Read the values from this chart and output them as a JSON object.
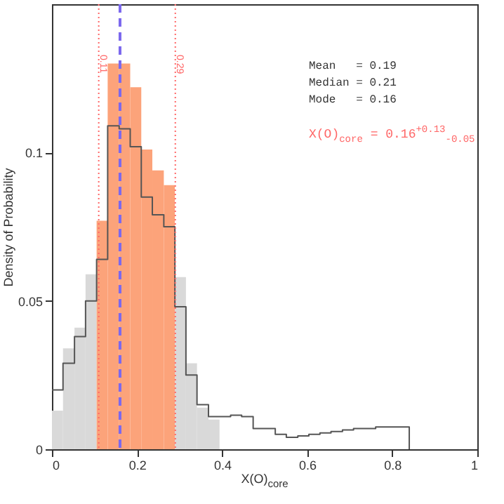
{
  "chart_data": {
    "type": "histogram",
    "xlabel": "X(O)$_{core}$",
    "ylabel": "Density of Probability",
    "bins": [
      0,
      0.026,
      0.053,
      0.079,
      0.105,
      0.131,
      0.158,
      0.184,
      0.21,
      0.236,
      0.263,
      0.289,
      0.315,
      0.341,
      0.368,
      0.394
    ],
    "series": [
      {
        "color": "#d9d9d9",
        "values": [
          0.013,
          0.034,
          0.041,
          0.059,
          null,
          null,
          null,
          null,
          null,
          null,
          null,
          0.058,
          0.029,
          0.014,
          0.01
        ]
      },
      {
        "color": "#fca37a",
        "values": [
          null,
          null,
          null,
          null,
          0.077,
          0.13,
          0.13,
          0.122,
          0.101,
          0.094,
          0.089,
          null,
          null,
          null,
          null
        ]
      },
      {
        "type": "step",
        "color": "#555555",
        "x": [
          0,
          0.026,
          0.053,
          0.079,
          0.105,
          0.131,
          0.158,
          0.184,
          0.21,
          0.236,
          0.263,
          0.289,
          0.315,
          0.341,
          0.368,
          0.394,
          0.42,
          0.446,
          0.473,
          0.499,
          0.525,
          0.551,
          0.578,
          0.604,
          0.63,
          0.656,
          0.683,
          0.709,
          0.735,
          0.761,
          0.788,
          0.814,
          0.84
        ],
        "values": [
          0.02,
          0.029,
          0.038,
          0.05,
          0.064,
          0.109,
          0.108,
          0.102,
          0.085,
          0.079,
          0.075,
          0.048,
          0.025,
          0.015,
          0.011,
          0.011,
          0.0115,
          0.011,
          0.007,
          0.007,
          0.005,
          0.004,
          0.0045,
          0.005,
          0.0055,
          0.006,
          0.0065,
          0.007,
          0.007,
          0.0075,
          0.0075,
          0.0075,
          0
        ]
      }
    ],
    "xlim": [
      0,
      1
    ],
    "xticks": [
      0,
      0.2,
      0.4,
      0.6,
      0.8,
      1
    ],
    "ylim": [
      0,
      0.15
    ],
    "yticks": [
      0,
      0.05,
      0.1
    ],
    "ref_lines": [
      {
        "axis": "x",
        "value": 0.11,
        "label": "0.11",
        "color": "#ff6666",
        "line_style": "dotted"
      },
      {
        "axis": "x",
        "value": 0.29,
        "label": "0.29",
        "color": "#ff6666",
        "line_style": "dotted"
      },
      {
        "axis": "x",
        "value": 0.16,
        "color": "#7b68ee",
        "line_style": "dashed"
      }
    ],
    "annotations": [
      "Mean   = 0.19",
      "Median = 0.21",
      "Mode   = 0.16",
      "X(O)$_{core}$ = 0.16$^{+0.13}$$_{-0.05}$"
    ],
    "grid": false
  }
}
